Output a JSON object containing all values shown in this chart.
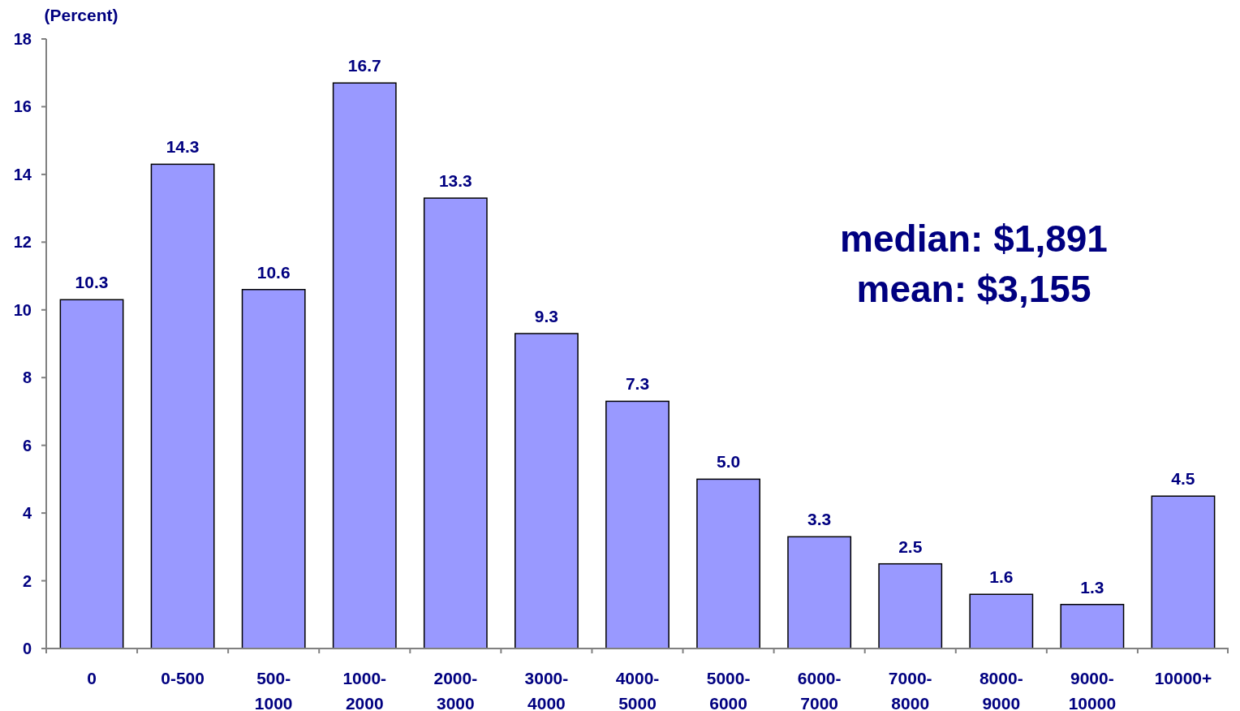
{
  "chart_data": {
    "type": "bar",
    "ylabel": "(Percent)",
    "categories": [
      "0",
      "0-500",
      "500-1000",
      "1000-2000",
      "2000-3000",
      "3000-4000",
      "4000-5000",
      "5000-6000",
      "6000-7000",
      "7000-8000",
      "8000-9000",
      "9000-10000",
      "10000+"
    ],
    "values": [
      10.3,
      14.3,
      10.6,
      16.7,
      13.3,
      9.3,
      7.3,
      5.0,
      3.3,
      2.5,
      1.6,
      1.3,
      4.5
    ],
    "value_labels": [
      "10.3",
      "14.3",
      "10.6",
      "16.7",
      "13.3",
      "9.3",
      "7.3",
      "5.0",
      "3.3",
      "2.5",
      "1.6",
      "1.3",
      "4.5"
    ],
    "color": "#9999ff",
    "ylim": [
      0,
      18
    ],
    "yticks": [
      0,
      2,
      4,
      6,
      8,
      10,
      12,
      14,
      16,
      18
    ],
    "grid": false,
    "annotations": [
      "median: $1,891",
      "mean: $3,155"
    ]
  }
}
